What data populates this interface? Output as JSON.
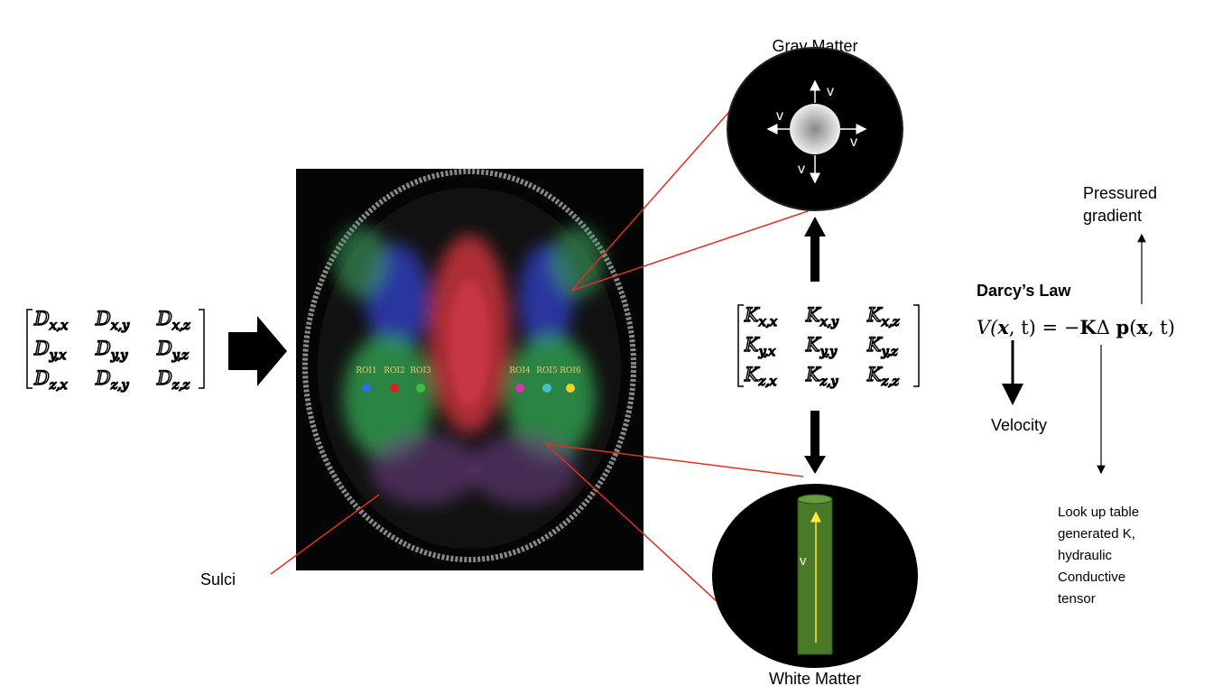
{
  "left_matrix": {
    "entries": [
      [
        {
          "base": "D",
          "sub": "x,x"
        },
        {
          "base": "D",
          "sub": "x,y"
        },
        {
          "base": "D",
          "sub": "x,z"
        }
      ],
      [
        {
          "base": "D",
          "sub": "y,x"
        },
        {
          "base": "D",
          "sub": "y,y"
        },
        {
          "base": "D",
          "sub": "y,z"
        }
      ],
      [
        {
          "base": "D",
          "sub": "z,x"
        },
        {
          "base": "D",
          "sub": "z,y"
        },
        {
          "base": "D",
          "sub": "z,z"
        }
      ]
    ]
  },
  "brain": {
    "roi_labels": [
      "ROI1",
      "ROI2",
      "ROI3",
      "ROI4",
      "ROI5",
      "ROI6"
    ],
    "sulci_label": "Sulci"
  },
  "gray_matter": {
    "title": "Gray Matter",
    "arrow_labels": [
      "v",
      "v",
      "v",
      "v"
    ]
  },
  "white_matter": {
    "title": "White Matter",
    "arrow_label": "v"
  },
  "k_matrix": {
    "entries": [
      [
        {
          "base": "K",
          "sub": "x,x"
        },
        {
          "base": "K",
          "sub": "x,y"
        },
        {
          "base": "K",
          "sub": "x,z"
        }
      ],
      [
        {
          "base": "K",
          "sub": "y,x"
        },
        {
          "base": "K",
          "sub": "y,y"
        },
        {
          "base": "K",
          "sub": "y,z"
        }
      ],
      [
        {
          "base": "K",
          "sub": "z,x"
        },
        {
          "base": "K",
          "sub": "z,y"
        },
        {
          "base": "K",
          "sub": "z,z"
        }
      ]
    ]
  },
  "darcy": {
    "title": "Darcy’s Law",
    "equation": [
      "V(",
      "x",
      ", t) =  −",
      "K",
      "Δ ",
      "p",
      "(",
      "x",
      ", t)"
    ],
    "pressure_label": [
      "Pressured",
      "gradient"
    ],
    "velocity_label": "Velocity",
    "k_note": [
      "Look up table",
      "generated K,",
      "hydraulic",
      "Conductive",
      "tensor"
    ]
  }
}
